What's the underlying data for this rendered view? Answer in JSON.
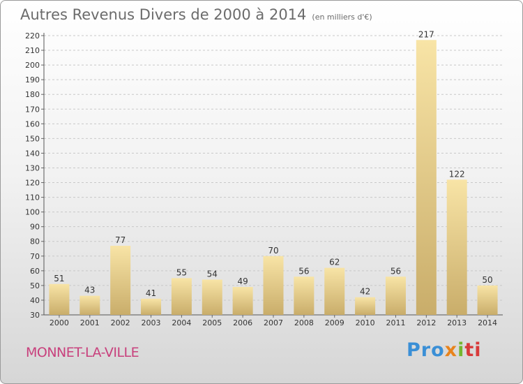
{
  "chart_data": {
    "type": "bar",
    "title": "Autres Revenus Divers de 2000 à 2014",
    "title_unit": "(en milliers d'€)",
    "categories": [
      "2000",
      "2001",
      "2002",
      "2003",
      "2004",
      "2005",
      "2006",
      "2007",
      "2008",
      "2009",
      "2010",
      "2011",
      "2012",
      "2013",
      "2014"
    ],
    "values": [
      51,
      43,
      77,
      41,
      55,
      54,
      49,
      70,
      56,
      62,
      42,
      56,
      217,
      122,
      50
    ],
    "ylim": [
      30,
      220
    ],
    "yticks": [
      30,
      40,
      50,
      60,
      70,
      80,
      90,
      100,
      110,
      120,
      130,
      140,
      150,
      160,
      170,
      180,
      190,
      200,
      210,
      220
    ],
    "grid": true,
    "bar_color": "#f0d58c"
  },
  "footer": {
    "town": "MONNET-LA-VILLE",
    "logo": [
      "Pro",
      "x",
      "i",
      "ti"
    ]
  }
}
